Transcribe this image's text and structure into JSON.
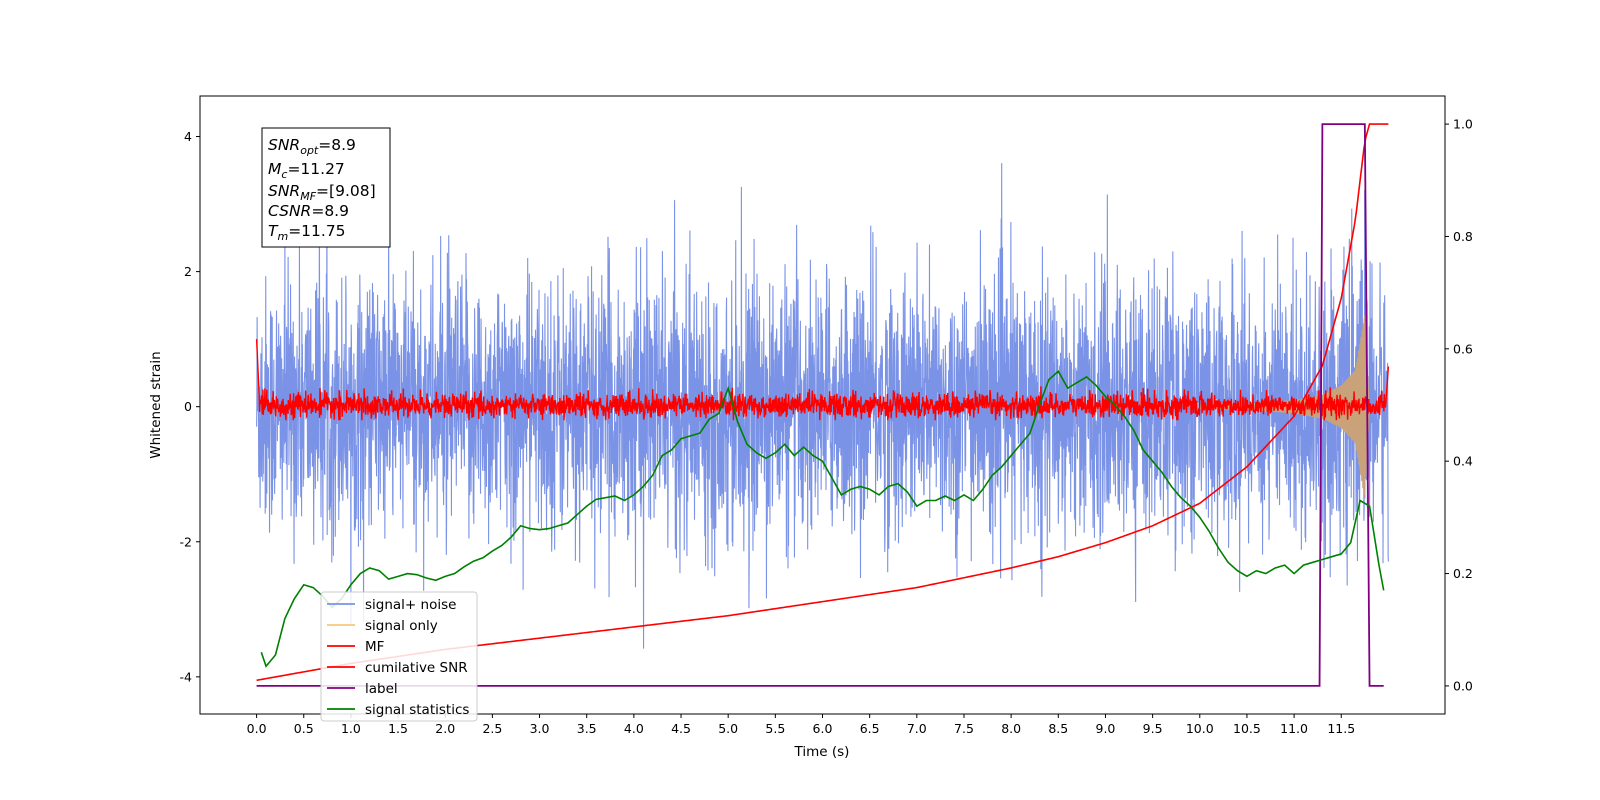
{
  "chart_data": {
    "type": "line",
    "xlabel": "Time (s)",
    "ylabel": "Whitened strain",
    "xlim": [
      -0.6,
      12.6
    ],
    "ylim": [
      -4.55,
      4.6
    ],
    "y2lim": [
      -0.05,
      1.05
    ],
    "xticks": [
      "0.0",
      "0.5",
      "1.0",
      "1.5",
      "2.0",
      "2.5",
      "3.0",
      "3.5",
      "4.0",
      "4.5",
      "5.0",
      "5.5",
      "6.0",
      "6.5",
      "7.0",
      "7.5",
      "8.0",
      "8.5",
      "9.0",
      "9.5",
      "10.0",
      "10.5",
      "11.0",
      "11.5"
    ],
    "yticks": [
      "-4",
      "-2",
      "0",
      "2",
      "4"
    ],
    "y2ticks": [
      "0.0",
      "0.2",
      "0.4",
      "0.6",
      "0.8",
      "1.0"
    ],
    "legend": {
      "placement": "lower-left",
      "entries": [
        "signal+ noise",
        "signal only",
        "MF",
        "cumilative SNR",
        "label",
        "signal statistics"
      ]
    },
    "annotation": {
      "snr_opt": {
        "base": "SNR",
        "sub": "opt",
        "value": "=8.9"
      },
      "mc": {
        "base": "M",
        "sub": "c",
        "value": "=11.27"
      },
      "snr_mf": {
        "base": "SNR",
        "sub": "MF",
        "value": "=[9.08]"
      },
      "csnr": {
        "base": "CSNR",
        "value": "=8.9"
      },
      "tm": {
        "base": "T",
        "sub": "m",
        "value": "=11.75"
      }
    },
    "colors": {
      "signal_noise": "#7b93e6",
      "signal_only": "#f5c97a",
      "mf": "#ff0000",
      "cumulative_snr": "#ff0000",
      "label": "#800080",
      "signal_statistics": "#008000"
    },
    "series": [
      {
        "name": "signal+ noise",
        "axis": "left",
        "noise_std": 0.95,
        "x_range": [
          0.0,
          12.0
        ]
      },
      {
        "name": "signal only",
        "axis": "left",
        "envelope_x": [
          10.0,
          10.5,
          11.0,
          11.3,
          11.5,
          11.65,
          11.75,
          11.8
        ],
        "envelope_y": [
          0.03,
          0.05,
          0.1,
          0.18,
          0.32,
          0.55,
          1.4,
          0.0
        ]
      },
      {
        "name": "MF",
        "axis": "left",
        "x_range": [
          0.0,
          12.0
        ],
        "start_value": 1.0,
        "noise_std": 0.09,
        "end_value": 0.85
      },
      {
        "name": "cumilative SNR",
        "axis": "right",
        "x": [
          0.0,
          1.0,
          2.0,
          3.0,
          4.0,
          5.0,
          6.0,
          7.0,
          8.0,
          8.5,
          9.0,
          9.5,
          10.0,
          10.5,
          11.0,
          11.3,
          11.5,
          11.65,
          11.75,
          11.8,
          12.0
        ],
        "y": [
          0.01,
          0.04,
          0.065,
          0.085,
          0.105,
          0.125,
          0.15,
          0.175,
          0.21,
          0.23,
          0.255,
          0.285,
          0.325,
          0.39,
          0.48,
          0.57,
          0.69,
          0.83,
          0.97,
          1.0,
          1.0
        ]
      },
      {
        "name": "label",
        "axis": "right",
        "x": [
          0.0,
          11.27,
          11.3,
          11.75,
          11.8,
          11.95
        ],
        "y": [
          0.0,
          0.0,
          1.0,
          1.0,
          0.0,
          0.0
        ]
      },
      {
        "name": "signal statistics",
        "axis": "right",
        "x": [
          0.05,
          0.1,
          0.2,
          0.3,
          0.4,
          0.5,
          0.6,
          0.7,
          0.8,
          0.9,
          1.0,
          1.1,
          1.2,
          1.3,
          1.4,
          1.5,
          1.6,
          1.7,
          1.8,
          1.9,
          2.0,
          2.1,
          2.2,
          2.3,
          2.4,
          2.5,
          2.6,
          2.7,
          2.8,
          2.9,
          3.0,
          3.1,
          3.2,
          3.3,
          3.4,
          3.5,
          3.6,
          3.7,
          3.8,
          3.9,
          4.0,
          4.1,
          4.2,
          4.3,
          4.4,
          4.5,
          4.6,
          4.7,
          4.8,
          4.9,
          5.0,
          5.1,
          5.2,
          5.3,
          5.4,
          5.5,
          5.6,
          5.7,
          5.8,
          5.9,
          6.0,
          6.1,
          6.2,
          6.3,
          6.4,
          6.5,
          6.6,
          6.7,
          6.8,
          6.9,
          7.0,
          7.1,
          7.2,
          7.3,
          7.4,
          7.5,
          7.6,
          7.7,
          7.8,
          7.9,
          8.0,
          8.1,
          8.2,
          8.3,
          8.4,
          8.5,
          8.6,
          8.7,
          8.8,
          8.9,
          9.0,
          9.1,
          9.2,
          9.3,
          9.4,
          9.5,
          9.6,
          9.7,
          9.8,
          9.9,
          10.0,
          10.1,
          10.2,
          10.3,
          10.4,
          10.5,
          10.6,
          10.7,
          10.8,
          10.9,
          11.0,
          11.1,
          11.2,
          11.3,
          11.4,
          11.5,
          11.6,
          11.7,
          11.8,
          11.9,
          11.95
        ],
        "y": [
          0.06,
          0.035,
          0.055,
          0.12,
          0.155,
          0.18,
          0.175,
          0.16,
          0.14,
          0.155,
          0.18,
          0.2,
          0.21,
          0.205,
          0.19,
          0.195,
          0.2,
          0.198,
          0.192,
          0.188,
          0.195,
          0.2,
          0.212,
          0.222,
          0.228,
          0.24,
          0.25,
          0.265,
          0.285,
          0.28,
          0.278,
          0.28,
          0.285,
          0.29,
          0.305,
          0.32,
          0.332,
          0.335,
          0.338,
          0.33,
          0.34,
          0.355,
          0.375,
          0.41,
          0.42,
          0.44,
          0.445,
          0.45,
          0.475,
          0.485,
          0.53,
          0.47,
          0.43,
          0.415,
          0.405,
          0.415,
          0.43,
          0.41,
          0.425,
          0.41,
          0.4,
          0.37,
          0.34,
          0.35,
          0.355,
          0.35,
          0.34,
          0.355,
          0.36,
          0.345,
          0.32,
          0.33,
          0.33,
          0.338,
          0.33,
          0.34,
          0.33,
          0.35,
          0.375,
          0.39,
          0.41,
          0.43,
          0.45,
          0.5,
          0.545,
          0.56,
          0.53,
          0.54,
          0.55,
          0.535,
          0.515,
          0.5,
          0.48,
          0.455,
          0.42,
          0.4,
          0.38,
          0.355,
          0.335,
          0.32,
          0.3,
          0.275,
          0.245,
          0.22,
          0.205,
          0.195,
          0.205,
          0.2,
          0.21,
          0.215,
          0.2,
          0.215,
          0.22,
          0.225,
          0.23,
          0.235,
          0.255,
          0.33,
          0.32,
          0.215,
          0.17
        ]
      }
    ]
  }
}
